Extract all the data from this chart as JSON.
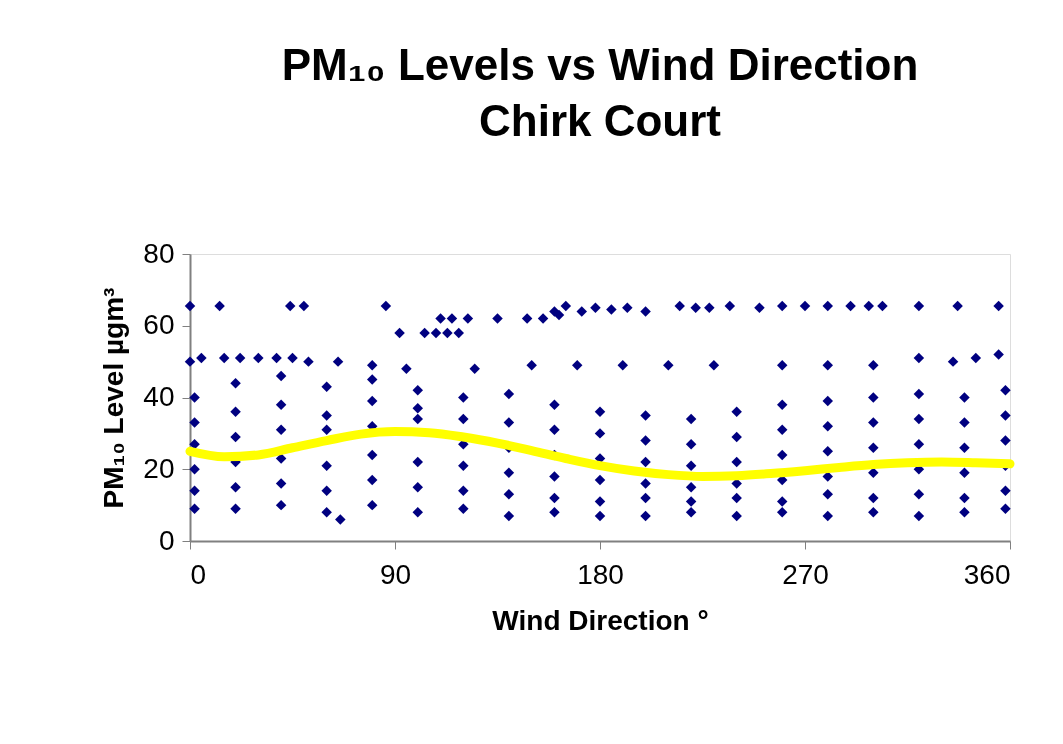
{
  "chart_data": {
    "type": "scatter",
    "title": "PM₁₀ Levels vs Wind Direction",
    "subtitle": "Chirk Court",
    "xlabel": "Wind Direction °",
    "ylabel": "PM₁₀ Level µgm³",
    "xlim": [
      0,
      360
    ],
    "xticks": [
      0,
      90,
      180,
      270,
      360
    ],
    "ylim": [
      0,
      80
    ],
    "yticks": [
      0,
      20,
      40,
      60,
      80
    ],
    "grid": false,
    "marker": "diamond",
    "series": [
      {
        "color": "#000080",
        "x": [
          0,
          13,
          44,
          50,
          86,
          160,
          165,
          172,
          178,
          185,
          192,
          200,
          215,
          222,
          228,
          237,
          250,
          260,
          270,
          280,
          290,
          298,
          304,
          320,
          337,
          355,
          110,
          115,
          122,
          135,
          148,
          155,
          162,
          92,
          103,
          108,
          113,
          118,
          0,
          5,
          15,
          22,
          30,
          38,
          45,
          52,
          65,
          80,
          95,
          125,
          150,
          170,
          190,
          210,
          230,
          260,
          280,
          300,
          320,
          335,
          345,
          355,
          2,
          2,
          2,
          2,
          2,
          2,
          20,
          20,
          20,
          20,
          20,
          20,
          40,
          40,
          40,
          40,
          40,
          40,
          60,
          60,
          60,
          60,
          60,
          60,
          66,
          80,
          80,
          80,
          80,
          80,
          80,
          100,
          100,
          100,
          100,
          100,
          100,
          120,
          120,
          120,
          120,
          120,
          120,
          140,
          140,
          140,
          140,
          140,
          140,
          160,
          160,
          160,
          160,
          160,
          160,
          180,
          180,
          180,
          180,
          180,
          180,
          200,
          200,
          200,
          200,
          200,
          200,
          220,
          220,
          220,
          220,
          220,
          220,
          240,
          240,
          240,
          240,
          240,
          240,
          260,
          260,
          260,
          260,
          260,
          260,
          280,
          280,
          280,
          280,
          280,
          280,
          300,
          300,
          300,
          300,
          300,
          300,
          320,
          320,
          320,
          320,
          320,
          320,
          340,
          340,
          340,
          340,
          340,
          340,
          358,
          358,
          358,
          358,
          358,
          358
        ],
        "values": [
          65.5,
          65.5,
          65.5,
          65.5,
          65.5,
          64,
          65.5,
          64,
          65,
          64.5,
          65,
          64,
          65.5,
          65,
          65,
          65.5,
          65,
          65.5,
          65.5,
          65.5,
          65.5,
          65.5,
          65.5,
          65.5,
          65.5,
          65.5,
          62,
          62,
          62,
          62,
          62,
          62,
          63,
          58,
          58,
          58,
          58,
          58,
          50,
          51,
          51,
          51,
          51,
          51,
          51,
          50,
          50,
          49,
          48,
          48,
          49,
          49,
          49,
          49,
          49,
          49,
          49,
          49,
          51,
          50,
          51,
          52,
          9,
          14,
          20,
          27,
          33,
          40,
          9,
          15,
          22,
          29,
          36,
          44,
          10,
          16,
          23,
          31,
          38,
          46,
          8,
          14,
          21,
          31,
          35,
          43,
          6,
          10,
          17,
          24,
          32,
          39,
          45,
          8,
          15,
          22,
          34,
          37,
          42,
          9,
          14,
          21,
          27,
          34,
          40,
          7,
          13,
          19,
          26,
          33,
          41,
          8,
          12,
          18,
          24,
          31,
          38,
          7,
          11,
          17,
          23,
          30,
          36,
          7,
          12,
          16,
          22,
          28,
          35,
          8,
          11,
          15,
          21,
          27,
          34,
          7,
          12,
          16,
          22,
          29,
          36,
          8,
          11,
          17,
          24,
          31,
          38,
          7,
          13,
          18,
          25,
          32,
          39,
          8,
          12,
          19,
          26,
          33,
          40,
          7,
          13,
          20,
          27,
          34,
          41,
          8,
          12,
          19,
          26,
          33,
          40,
          9,
          14,
          21,
          28,
          35,
          42
        ]
      },
      {
        "type": "line",
        "color": "#ffff00",
        "line_style": "solid",
        "x": [
          0,
          15,
          30,
          45,
          60,
          75,
          90,
          105,
          120,
          135,
          150,
          165,
          180,
          195,
          210,
          225,
          240,
          255,
          270,
          285,
          300,
          315,
          330,
          345,
          360
        ],
        "values": [
          25,
          23.5,
          24,
          26,
          28,
          29.8,
          30.5,
          30.2,
          29,
          27.3,
          25.2,
          23,
          21,
          19.5,
          18.5,
          18,
          18.2,
          18.8,
          19.6,
          20.5,
          21.3,
          21.8,
          22,
          21.8,
          21.5
        ]
      }
    ]
  }
}
